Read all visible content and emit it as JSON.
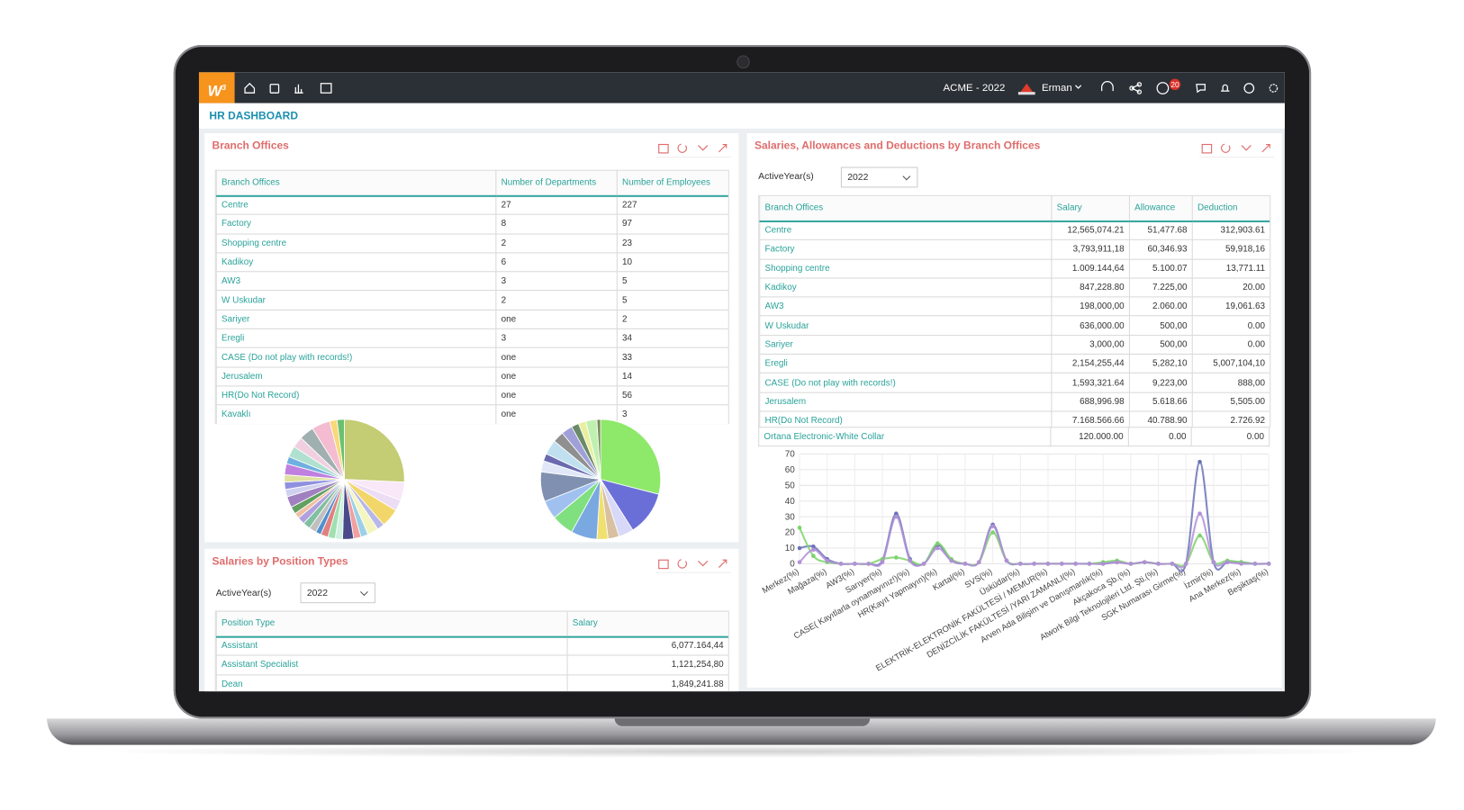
{
  "header": {
    "logo": "W",
    "logo_sup": "3",
    "company": "ACME - 2022",
    "user": "Erman",
    "badge": "20"
  },
  "page_title": "HR DASHBOARD",
  "branch_offices": {
    "title": "Branch Offices",
    "table": {
      "columns": [
        "Branch Offices",
        "Number of Departments",
        "Number of Employees"
      ],
      "rows": [
        [
          "Centre",
          "27",
          "227"
        ],
        [
          "Factory",
          "8",
          "97"
        ],
        [
          "Shopping centre",
          "2",
          "23"
        ],
        [
          "Kadikoy",
          "6",
          "10"
        ],
        [
          "AW3",
          "3",
          "5"
        ],
        [
          "W Uskudar",
          "2",
          "5"
        ],
        [
          "Sariyer",
          "one",
          "2"
        ],
        [
          "Eregli",
          "3",
          "34"
        ],
        [
          "CASE (Do not play with records!)",
          "one",
          "33"
        ],
        [
          "Jerusalem",
          "one",
          "14"
        ],
        [
          "HR(Do Not Record)",
          "one",
          "56"
        ],
        [
          "Kavaklı",
          "one",
          "3"
        ]
      ]
    }
  },
  "branch_salaries": {
    "title": "Salaries, Allowances and Deductions by Branch Offices",
    "filter_label": "ActiveYear(s)",
    "filter_value": "2022",
    "table": {
      "columns": [
        "Branch Offices",
        "Salary",
        "Allowance",
        "Deduction"
      ],
      "rows": [
        [
          "Centre",
          "12,565,074.21",
          "51,477.68",
          "312,903.61"
        ],
        [
          "Factory",
          "3,793,911,18",
          "60,346.93",
          "59,918,16"
        ],
        [
          "Shopping centre",
          "1.009.144,64",
          "5.100.07",
          "13,771.11"
        ],
        [
          "Kadikoy",
          "847,228.80",
          "7.225,00",
          "20.00"
        ],
        [
          "AW3",
          "198,000,00",
          "2.060.00",
          "19,061.63"
        ],
        [
          "W Uskudar",
          "636,000.00",
          "500,00",
          "0.00"
        ],
        [
          "Sariyer",
          "3,000,00",
          "500,00",
          "0.00"
        ],
        [
          "Eregli",
          "2,154,255,44",
          "5,282,10",
          "5,007,104,10"
        ],
        [
          "CASE (Do not play with records!)",
          "1,593,321.64",
          "9,223,00",
          "888,00"
        ],
        [
          "Jerusalem",
          "688,996.98",
          "5.618.66",
          "5,505.00"
        ],
        [
          "HR(Do Not Record)",
          "7.168.566.66",
          "40.788.90",
          "2.726.92"
        ]
      ],
      "footer": [
        "Ortana Electronic-White Collar",
        "120.000.00",
        "0.00",
        "0.00"
      ]
    }
  },
  "position_salaries": {
    "title": "Salaries by Position Types",
    "filter_label": "ActiveYear(s)",
    "filter_value": "2022",
    "table": {
      "columns": [
        "Position Type",
        "Salary"
      ],
      "rows": [
        [
          "Assistant",
          "6,077.164,44"
        ],
        [
          "Assistant Specialist",
          "1,121,254,80"
        ],
        [
          "Dean",
          "1,849,241.88"
        ]
      ]
    }
  },
  "chart_data": [
    {
      "type": "pie",
      "values": [
        26,
        5,
        3,
        5,
        2,
        3,
        2,
        2,
        3,
        2,
        2,
        2,
        1.5,
        2,
        2,
        2,
        1.5,
        2,
        3,
        2,
        2,
        2,
        3,
        2,
        3,
        3,
        4,
        5,
        2,
        2
      ],
      "colors": [
        "#c4cc74",
        "#f8e8f8",
        "#ecdcf4",
        "#f3d66a",
        "#b8b8e8",
        "#f5f5c0",
        "#9ad0e8",
        "#f0a0a0",
        "#4a4a8a",
        "#d0f0e0",
        "#a0e0b0",
        "#e08080",
        "#5090d0",
        "#c0c0c0",
        "#80c0a0",
        "#b0a0e0",
        "#f0c0a0",
        "#60a060",
        "#a080c0",
        "#d0d0f0",
        "#9090e0",
        "#e0e0a0",
        "#c080e0",
        "#70b0e0",
        "#b0e0d0",
        "#f0d0e0",
        "#a0b0b0",
        "#f4bcd0",
        "#f8d878",
        "#6cc070"
      ]
    },
    {
      "type": "pie",
      "values": [
        29,
        12,
        4,
        3,
        3,
        7,
        6,
        5,
        8,
        3,
        2,
        4,
        3,
        3,
        2,
        2,
        3,
        1
      ],
      "colors": [
        "#8ee86a",
        "#6a6fd8",
        "#d8d8f8",
        "#d8c0a0",
        "#f0e070",
        "#7aa8e0",
        "#80e080",
        "#a0c0f0",
        "#8090b0",
        "#e0e8f8",
        "#6a6ab0",
        "#c0e0f0",
        "#909090",
        "#a0a0d8",
        "#6a8a6a",
        "#e8f0a0",
        "#c0f0b0",
        "#7a8a5a"
      ]
    },
    {
      "type": "line",
      "grid": true,
      "ylim": [
        0,
        70
      ],
      "yticks": [
        0,
        10,
        20,
        30,
        40,
        50,
        60,
        70
      ],
      "categories": [
        "Merkez(%)",
        null,
        "Mağaza(%)",
        null,
        "AW3(%)",
        null,
        "Sarıyer(%)",
        null,
        "CASE( Kayıtlarla oynamayınız!)(%)",
        null,
        "HR(Kayıt Yapmayın)(%)",
        null,
        "Kartal(%)",
        null,
        "SVS(%)",
        null,
        "Üsküdar(%)",
        null,
        "ELEKTRİK-ELEKTRONİK FAKÜLTESİ / MEMUR(%)",
        null,
        "DENİZCİLİK FAKÜLTESİ /YARI ZAMANLI(%)",
        null,
        "Arven Ada Bilişim ve Danışmanlık(%)",
        null,
        "Akçakoca Şb.(%)",
        null,
        "Atwork Bilgi Teknolojileri Ltd. Şti.(%)",
        null,
        "SGK Numarası Girme(%)",
        null,
        "İzmir(%)",
        null,
        "Ana Merkez(%)",
        null,
        "Beşiktaş(%)"
      ],
      "series": [
        {
          "color": "#6b73b8",
          "values": [
            10,
            11,
            3,
            0,
            0,
            0,
            2,
            32,
            3,
            0,
            12,
            2,
            0,
            1,
            25,
            2,
            0,
            0,
            0,
            0,
            0,
            0,
            0,
            1,
            0,
            1,
            0,
            0,
            0,
            65,
            1,
            1,
            1,
            0,
            0
          ]
        },
        {
          "color": "#7ed36b",
          "values": [
            23,
            5,
            1,
            0,
            0,
            0,
            3,
            4,
            2,
            0,
            13,
            3,
            0,
            1,
            20,
            2,
            0,
            0,
            0,
            0,
            0,
            0,
            1,
            2,
            0,
            1,
            0,
            0,
            0,
            18,
            1,
            2,
            1,
            0,
            0
          ]
        },
        {
          "color": "#b28fd8",
          "values": [
            1,
            9,
            2,
            0,
            0,
            0,
            1,
            30,
            2,
            0,
            10,
            2,
            0,
            1,
            24,
            2,
            0,
            0,
            0,
            0,
            0,
            0,
            0,
            1,
            0,
            1,
            0,
            0,
            0,
            32,
            1,
            1,
            0,
            0,
            0
          ]
        }
      ]
    }
  ]
}
